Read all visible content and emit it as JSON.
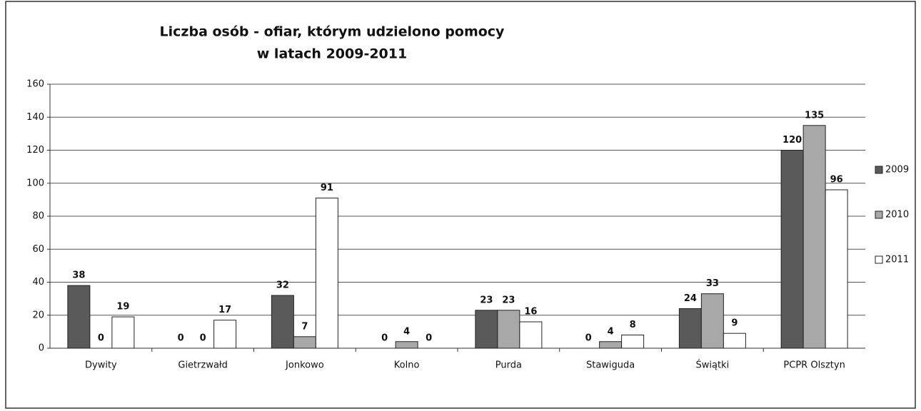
{
  "chart_data": {
    "type": "bar",
    "title": "Liczba osób - ofiar, którym udzielono pomocy",
    "subtitle": "w latach 2009-2011",
    "categories": [
      "Dywity",
      "Gietrzwałd",
      "Jonkowo",
      "Kolno",
      "Purda",
      "Stawiguda",
      "Świątki",
      "PCPR Olsztyn"
    ],
    "series": [
      {
        "name": "2009",
        "color": "#5a5a5a",
        "values": [
          38,
          0,
          32,
          0,
          23,
          0,
          24,
          120
        ]
      },
      {
        "name": "2010",
        "color": "#a8a8a8",
        "values": [
          0,
          0,
          7,
          4,
          23,
          4,
          33,
          135
        ]
      },
      {
        "name": "2011",
        "color": "#ffffff",
        "values": [
          19,
          17,
          91,
          0,
          16,
          8,
          9,
          96
        ]
      }
    ],
    "ylim": [
      0,
      160
    ],
    "yticks": [
      0,
      20,
      40,
      60,
      80,
      100,
      120,
      140,
      160
    ],
    "grid": true,
    "legend": "right"
  }
}
